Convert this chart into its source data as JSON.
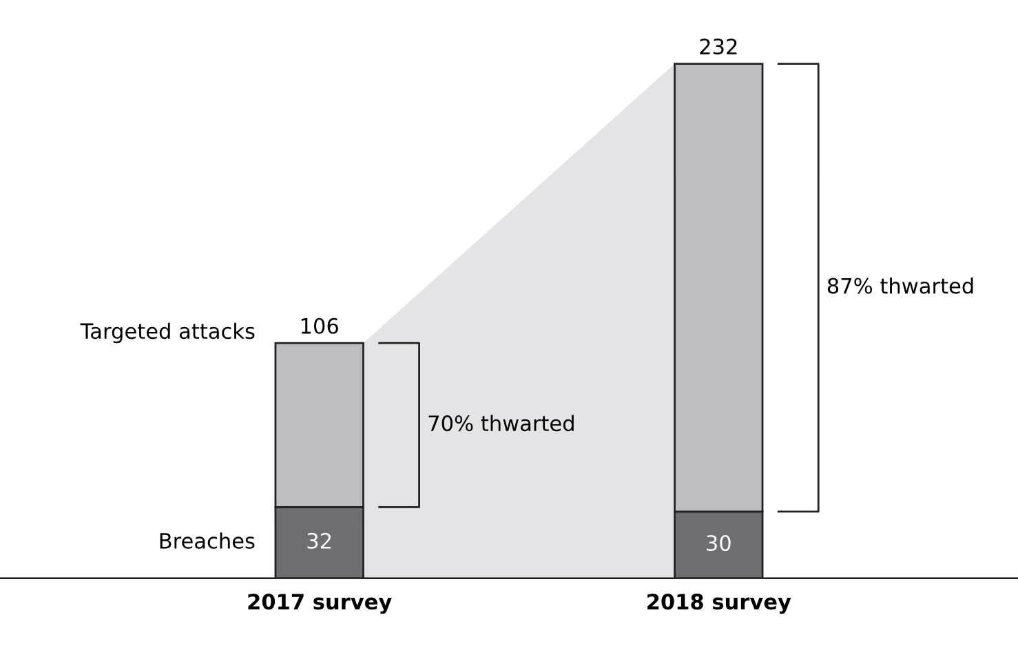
{
  "chart_data": {
    "type": "bar",
    "stacked": true,
    "categories": [
      "2017 survey",
      "2018 survey"
    ],
    "series": [
      {
        "name": "Breaches",
        "color": "#6e6e72",
        "values": [
          32,
          30
        ],
        "value_labels": [
          "32",
          "30"
        ]
      },
      {
        "name": "Targeted attacks",
        "color": "#bdbdc1",
        "values": [
          74,
          202
        ]
      }
    ],
    "totals": [
      "106",
      "232"
    ],
    "annotations": [
      "70% thwarted",
      "87% thwarted"
    ],
    "grid": false,
    "legend": false
  }
}
